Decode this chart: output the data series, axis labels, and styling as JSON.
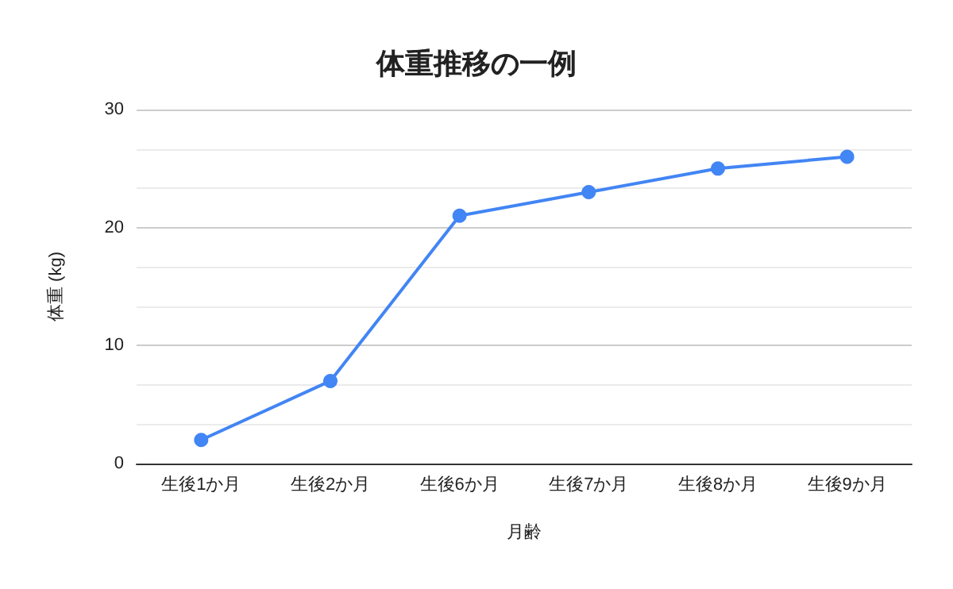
{
  "chart_data": {
    "type": "line",
    "title": "体重推移の一例",
    "xlabel": "月齢",
    "ylabel": "体重 (kg)",
    "categories": [
      "生後1か月",
      "生後2か月",
      "生後6か月",
      "生後7か月",
      "生後8か月",
      "生後9か月"
    ],
    "series": [
      {
        "color": "#4285f4",
        "values": [
          2,
          7,
          21,
          23,
          25,
          26
        ]
      }
    ],
    "ylim": [
      0,
      30
    ],
    "yticks": [
      0,
      10,
      20,
      30
    ],
    "grid": "y",
    "marker": "circle",
    "line_style": "solid"
  }
}
